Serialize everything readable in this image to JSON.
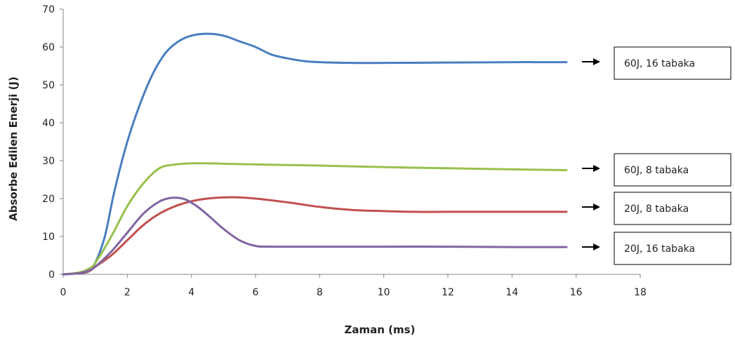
{
  "chart_data": {
    "type": "line",
    "title": "",
    "xlabel": "Zaman (ms)",
    "ylabel": "Absorbe Edilen Enerji (J)",
    "xlim": [
      0,
      18
    ],
    "ylim": [
      0,
      70
    ],
    "xticks": [
      0,
      2,
      4,
      6,
      8,
      10,
      12,
      14,
      16,
      18
    ],
    "yticks": [
      0,
      10,
      20,
      30,
      40,
      50,
      60,
      70
    ],
    "grid": false,
    "legend_placement": "right",
    "series": [
      {
        "name": "60J, 16 tabaka",
        "color": "#4a7ebf",
        "x": [
          0,
          0.5,
          0.8,
          1.0,
          1.3,
          1.6,
          2.0,
          2.4,
          2.8,
          3.2,
          3.6,
          4.0,
          4.5,
          5.0,
          5.5,
          6.0,
          6.5,
          7.0,
          7.5,
          8.0,
          9.0,
          10.0,
          12.0,
          14.0,
          15.7
        ],
        "y": [
          0,
          0.3,
          0.8,
          3,
          10,
          22,
          35,
          45,
          53,
          58.5,
          61.5,
          63,
          63.5,
          63,
          61.5,
          60,
          58,
          57,
          56.3,
          56,
          55.8,
          55.8,
          55.9,
          56,
          56
        ]
      },
      {
        "name": "60J, 8 tabaka",
        "color": "#98c04d",
        "x": [
          0,
          0.5,
          0.8,
          1.0,
          1.5,
          2.0,
          2.5,
          3.0,
          3.5,
          4.0,
          4.5,
          5.0,
          6.0,
          8.0,
          10.0,
          12.0,
          14.0,
          15.7
        ],
        "y": [
          0,
          0.5,
          1.5,
          3,
          10,
          18,
          24,
          28,
          29,
          29.3,
          29.3,
          29.2,
          29,
          28.7,
          28.3,
          28,
          27.7,
          27.5
        ]
      },
      {
        "name": "20J, 8 tabaka",
        "color": "#c0504d",
        "x": [
          0,
          0.5,
          0.8,
          1.0,
          1.5,
          2.0,
          2.5,
          3.0,
          3.5,
          4.0,
          4.5,
          5.0,
          5.5,
          6.0,
          7.0,
          8.0,
          9.0,
          10.0,
          11.0,
          12.0,
          14.0,
          15.7
        ],
        "y": [
          0,
          0.3,
          0.8,
          2,
          5,
          9,
          13,
          16,
          18,
          19.3,
          20,
          20.3,
          20.3,
          20,
          19,
          17.8,
          17,
          16.7,
          16.5,
          16.5,
          16.5,
          16.5
        ]
      },
      {
        "name": "20J, 16 tabaka",
        "color": "#8064a2",
        "x": [
          0,
          0.5,
          0.8,
          1.0,
          1.5,
          2.0,
          2.5,
          3.0,
          3.4,
          3.8,
          4.2,
          4.6,
          5.0,
          5.5,
          6.0,
          6.5,
          8.0,
          10.0,
          12.0,
          14.0,
          15.7
        ],
        "y": [
          0,
          0.3,
          1,
          2,
          6,
          11,
          16,
          19.2,
          20.2,
          19.8,
          17.8,
          15,
          12,
          9,
          7.5,
          7.3,
          7.3,
          7.3,
          7.3,
          7.2,
          7.2
        ]
      }
    ]
  }
}
